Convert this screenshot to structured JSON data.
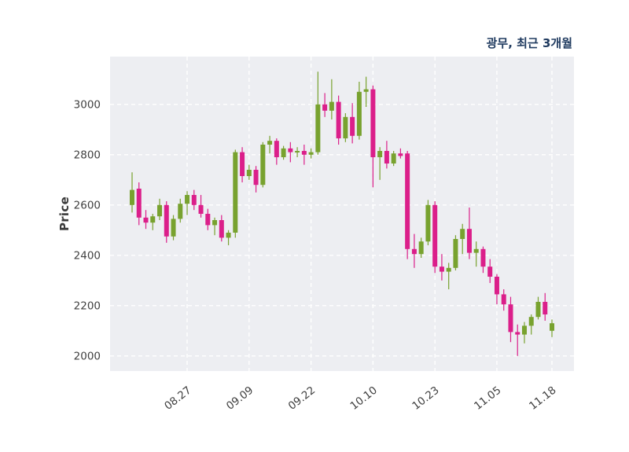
{
  "header": {
    "title": "광무, 최근 3개월"
  },
  "chart_data": {
    "type": "candlestick",
    "title": "광무, 최근 3개월",
    "xlabel": "",
    "ylabel": "Price",
    "ylim": [
      1940,
      3190
    ],
    "yticks": [
      2000,
      2200,
      2400,
      2600,
      2800,
      3000
    ],
    "xticks": [
      {
        "label": "08.27",
        "index": 8
      },
      {
        "label": "09.09",
        "index": 17
      },
      {
        "label": "09.22",
        "index": 26
      },
      {
        "label": "10.10",
        "index": 35
      },
      {
        "label": "10.23",
        "index": 44
      },
      {
        "label": "11.05",
        "index": 53
      },
      {
        "label": "11.18",
        "index": 61
      }
    ],
    "grid": true,
    "legend": "none",
    "plot_bg": "#edeef2",
    "grid_color": "#ffffff",
    "up_color": "#78a22f",
    "down_color": "#db1f8a",
    "candles_format": [
      "open",
      "high",
      "low",
      "close"
    ],
    "candles": [
      [
        2600,
        2730,
        2570,
        2660
      ],
      [
        2665,
        2690,
        2520,
        2550
      ],
      [
        2550,
        2580,
        2505,
        2530
      ],
      [
        2530,
        2565,
        2500,
        2555
      ],
      [
        2555,
        2625,
        2540,
        2600
      ],
      [
        2600,
        2615,
        2450,
        2475
      ],
      [
        2475,
        2560,
        2460,
        2545
      ],
      [
        2545,
        2625,
        2530,
        2605
      ],
      [
        2605,
        2655,
        2560,
        2640
      ],
      [
        2640,
        2660,
        2580,
        2600
      ],
      [
        2600,
        2640,
        2550,
        2565
      ],
      [
        2565,
        2585,
        2500,
        2520
      ],
      [
        2520,
        2550,
        2480,
        2540
      ],
      [
        2540,
        2560,
        2455,
        2470
      ],
      [
        2470,
        2500,
        2440,
        2490
      ],
      [
        2490,
        2820,
        2470,
        2810
      ],
      [
        2810,
        2830,
        2690,
        2715
      ],
      [
        2715,
        2760,
        2700,
        2740
      ],
      [
        2740,
        2755,
        2650,
        2680
      ],
      [
        2680,
        2850,
        2670,
        2840
      ],
      [
        2840,
        2875,
        2805,
        2855
      ],
      [
        2855,
        2865,
        2760,
        2790
      ],
      [
        2790,
        2835,
        2780,
        2825
      ],
      [
        2825,
        2850,
        2770,
        2810
      ],
      [
        2810,
        2830,
        2790,
        2815
      ],
      [
        2815,
        2840,
        2760,
        2800
      ],
      [
        2800,
        2825,
        2785,
        2810
      ],
      [
        2810,
        3130,
        2800,
        3000
      ],
      [
        3000,
        3045,
        2950,
        2975
      ],
      [
        2975,
        3100,
        2940,
        3010
      ],
      [
        3010,
        3035,
        2840,
        2865
      ],
      [
        2865,
        2965,
        2850,
        2950
      ],
      [
        2950,
        3005,
        2845,
        2875
      ],
      [
        2875,
        3090,
        2860,
        3050
      ],
      [
        3050,
        3110,
        2990,
        3060
      ],
      [
        3060,
        3075,
        2670,
        2790
      ],
      [
        2790,
        2830,
        2700,
        2815
      ],
      [
        2815,
        2855,
        2745,
        2765
      ],
      [
        2765,
        2815,
        2755,
        2805
      ],
      [
        2805,
        2825,
        2785,
        2795
      ],
      [
        2805,
        2815,
        2385,
        2425
      ],
      [
        2425,
        2485,
        2350,
        2405
      ],
      [
        2405,
        2470,
        2390,
        2455
      ],
      [
        2455,
        2620,
        2440,
        2600
      ],
      [
        2600,
        2615,
        2330,
        2355
      ],
      [
        2355,
        2405,
        2300,
        2335
      ],
      [
        2335,
        2370,
        2265,
        2350
      ],
      [
        2350,
        2480,
        2340,
        2465
      ],
      [
        2465,
        2525,
        2405,
        2505
      ],
      [
        2505,
        2590,
        2385,
        2410
      ],
      [
        2410,
        2455,
        2355,
        2425
      ],
      [
        2425,
        2435,
        2330,
        2355
      ],
      [
        2355,
        2385,
        2290,
        2315
      ],
      [
        2315,
        2325,
        2205,
        2245
      ],
      [
        2245,
        2265,
        2180,
        2205
      ],
      [
        2205,
        2235,
        2055,
        2095
      ],
      [
        2095,
        2125,
        2000,
        2085
      ],
      [
        2085,
        2135,
        2050,
        2120
      ],
      [
        2120,
        2165,
        2085,
        2155
      ],
      [
        2155,
        2235,
        2145,
        2215
      ],
      [
        2215,
        2250,
        2140,
        2165
      ],
      [
        2100,
        2145,
        2075,
        2130
      ]
    ]
  }
}
